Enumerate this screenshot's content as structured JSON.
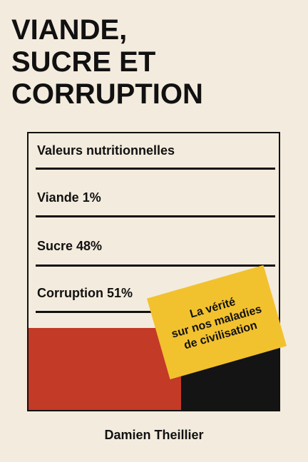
{
  "cover": {
    "title_lines": [
      "VIANDE,",
      "SUCRE ET",
      "CORRUPTION"
    ],
    "nutrition": {
      "header": "Valeurs nutritionnelles",
      "rows": [
        "Viande 1%",
        "Sucre 48%",
        "Corruption 51%"
      ]
    },
    "sticker_lines": [
      "La vérité",
      "sur nos maladies",
      "de civilisation"
    ],
    "author": "Damien Theillier",
    "colors": {
      "background": "#f3ebdd",
      "red_block": "#c33a27",
      "black_block": "#141414",
      "sticker": "#f2c12e"
    }
  }
}
